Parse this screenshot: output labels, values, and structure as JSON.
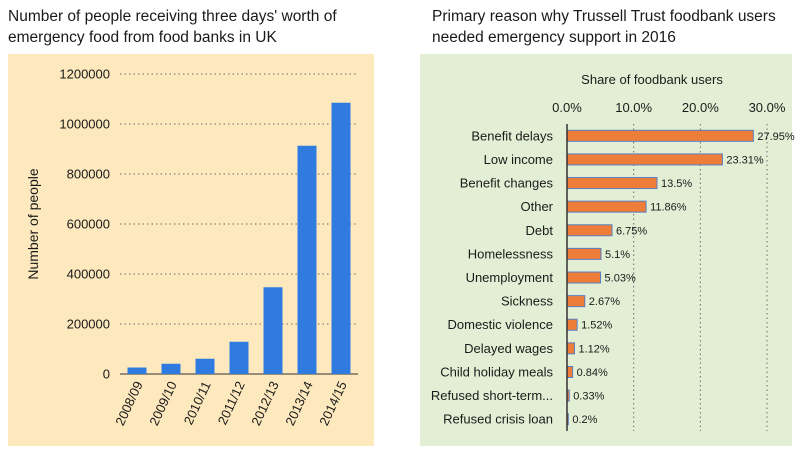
{
  "left_chart_title": "Number of people receiving three days' worth of emergency food from food banks in UK",
  "right_chart_title": "Primary reason why Trussell Trust foodbank users needed emergency support in 2016",
  "colors": {
    "left_background": "#fde9bd",
    "right_background": "#e3efd5",
    "left_bar": "#2f7be0",
    "right_bar": "#ee7d3a",
    "right_bar_border": "#5a7fc0"
  },
  "chart_data": [
    {
      "type": "bar",
      "orientation": "vertical",
      "title": "Number of people receiving three days' worth of emergency food from food banks in UK",
      "xlabel": "",
      "ylabel": "Number of people",
      "categories": [
        "2008/09",
        "2009/10",
        "2010/11",
        "2011/12",
        "2012/13",
        "2013/14",
        "2014/15"
      ],
      "values": [
        26000,
        41000,
        61000,
        129000,
        347000,
        913000,
        1085000
      ],
      "ylim": [
        0,
        1200000
      ],
      "y_ticks": [
        "0",
        "200000",
        "400000",
        "600000",
        "800000",
        "1000000",
        "1200000"
      ],
      "grid": true
    },
    {
      "type": "bar",
      "orientation": "horizontal",
      "title": "Primary reason why Trussell Trust foodbank users needed emergency support in 2016",
      "xlabel": "Share of foodbank users",
      "ylabel": "",
      "categories": [
        "Benefit delays",
        "Low income",
        "Benefit changes",
        "Other",
        "Debt",
        "Homelessness",
        "Unemployment",
        "Sickness",
        "Domestic violence",
        "Delayed wages",
        "Child holiday meals",
        "Refused short-term...",
        "Refused crisis loan"
      ],
      "values": [
        27.95,
        23.31,
        13.5,
        11.86,
        6.75,
        5.1,
        5.03,
        2.67,
        1.52,
        1.12,
        0.84,
        0.33,
        0.2
      ],
      "data_labels": [
        "27.95%",
        "23.31%",
        "13.5%",
        "11.86%",
        "6.75%",
        "5.1%",
        "5.03%",
        "2.67%",
        "1.52%",
        "1.12%",
        "0.84%",
        "0.33%",
        "0.2%"
      ],
      "xlim": [
        0,
        30
      ],
      "x_ticks": [
        "0.0%",
        "10.0%",
        "20.0%",
        "30.0%"
      ],
      "x_axis_position": "top",
      "grid": true
    }
  ]
}
